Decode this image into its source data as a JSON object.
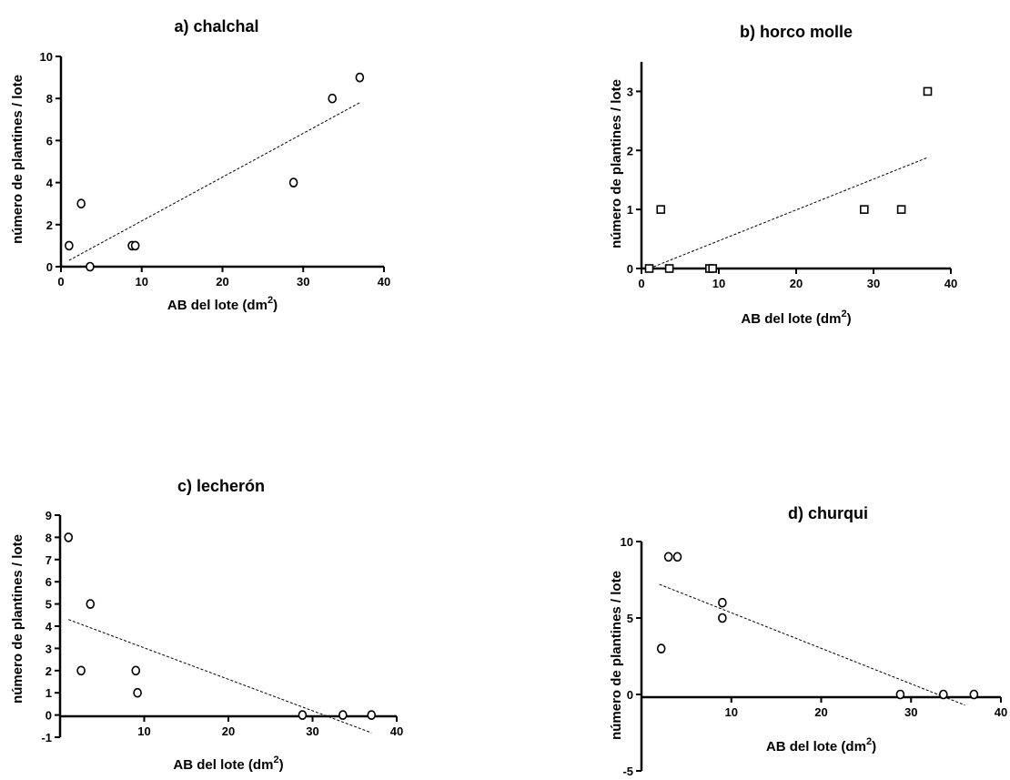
{
  "chart_data": [
    {
      "type": "scatter",
      "title": "a) chalchal",
      "xlabel": "AB del lote (dm",
      "xlabel_sup": "2",
      "xlabel_end": ")",
      "ylabel": "número de plantines / lote",
      "xlim": [
        0,
        40
      ],
      "ylim": [
        0,
        10
      ],
      "xticks": [
        0,
        10,
        20,
        30,
        40
      ],
      "yticks": [
        0,
        2,
        4,
        6,
        8,
        10
      ],
      "marker": "circle",
      "points": [
        {
          "x": 1.0,
          "y": 1
        },
        {
          "x": 2.5,
          "y": 3
        },
        {
          "x": 3.6,
          "y": 0
        },
        {
          "x": 8.8,
          "y": 1
        },
        {
          "x": 9.2,
          "y": 1
        },
        {
          "x": 28.8,
          "y": 4
        },
        {
          "x": 33.6,
          "y": 8
        },
        {
          "x": 37.0,
          "y": 9
        }
      ],
      "fit": [
        {
          "x": 1.0,
          "y": 0.3
        },
        {
          "x": 37.0,
          "y": 7.8
        }
      ]
    },
    {
      "type": "scatter",
      "title": "b) horco molle",
      "xlabel": "AB del lote (dm",
      "xlabel_sup": "2",
      "xlabel_end": ")",
      "ylabel": "número de plantines / lote",
      "xlim": [
        0,
        40
      ],
      "ylim": [
        0,
        3.5
      ],
      "xticks": [
        0,
        10,
        20,
        30,
        40
      ],
      "yticks": [
        0,
        1,
        2,
        3
      ],
      "marker": "square",
      "points": [
        {
          "x": 1.0,
          "y": 0
        },
        {
          "x": 2.5,
          "y": 1
        },
        {
          "x": 3.6,
          "y": 0
        },
        {
          "x": 8.8,
          "y": 0
        },
        {
          "x": 9.2,
          "y": 0
        },
        {
          "x": 28.8,
          "y": 1
        },
        {
          "x": 33.6,
          "y": 1
        },
        {
          "x": 37.0,
          "y": 3
        }
      ],
      "fit": [
        {
          "x": 1.0,
          "y": 0.0
        },
        {
          "x": 37.0,
          "y": 1.88
        }
      ]
    },
    {
      "type": "scatter",
      "title": "c) lecherón",
      "xlabel": "AB del lote (dm",
      "xlabel_sup": "2",
      "xlabel_end": ")",
      "ylabel": "número de plantines / lote",
      "xlim": [
        0,
        40
      ],
      "ylim": [
        -1,
        9
      ],
      "xticks": [
        10,
        20,
        30,
        40
      ],
      "yticks": [
        -1,
        0,
        1,
        2,
        3,
        4,
        5,
        6,
        7,
        8,
        9
      ],
      "marker": "circle",
      "points": [
        {
          "x": 1.0,
          "y": 8
        },
        {
          "x": 2.5,
          "y": 2
        },
        {
          "x": 3.6,
          "y": 5
        },
        {
          "x": 9.0,
          "y": 2
        },
        {
          "x": 9.2,
          "y": 1
        },
        {
          "x": 28.8,
          "y": 0
        },
        {
          "x": 33.6,
          "y": 0
        },
        {
          "x": 37.0,
          "y": 0
        }
      ],
      "fit": [
        {
          "x": 1.0,
          "y": 4.3
        },
        {
          "x": 37.0,
          "y": -0.8
        }
      ]
    },
    {
      "type": "scatter",
      "title": "d) churqui",
      "xlabel": "AB del lote (dm",
      "xlabel_sup": "2",
      "xlabel_end": ")",
      "ylabel": "número de plantines / lote",
      "xlim": [
        0,
        40
      ],
      "ylim": [
        -5,
        10
      ],
      "xticks": [
        10,
        20,
        30,
        40
      ],
      "yticks": [
        -5,
        0,
        5,
        10
      ],
      "marker": "circle",
      "points": [
        {
          "x": 2.2,
          "y": 3
        },
        {
          "x": 3.0,
          "y": 9
        },
        {
          "x": 4.0,
          "y": 9
        },
        {
          "x": 9.0,
          "y": 6
        },
        {
          "x": 9.0,
          "y": 5
        },
        {
          "x": 28.8,
          "y": 0
        },
        {
          "x": 33.6,
          "y": 0
        },
        {
          "x": 37.0,
          "y": 0
        }
      ],
      "fit": [
        {
          "x": 2.0,
          "y": 7.2
        },
        {
          "x": 36.0,
          "y": -0.7
        }
      ]
    }
  ]
}
